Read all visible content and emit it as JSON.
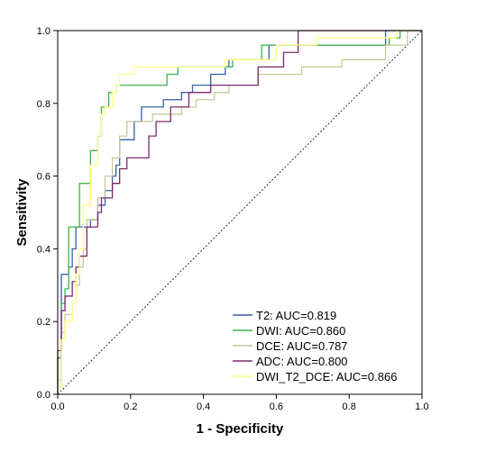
{
  "chart_data": {
    "type": "line",
    "title": "",
    "xlabel": "1 - Specificity",
    "ylabel": "Sensitivity",
    "xlim": [
      0,
      1
    ],
    "ylim": [
      0,
      1
    ],
    "xticks": [
      "0.0",
      "0.2",
      "0.4",
      "0.6",
      "0.8",
      "1.0"
    ],
    "yticks": [
      "0.0",
      "0.2",
      "0.4",
      "0.6",
      "0.8",
      "1.0"
    ],
    "grid": false,
    "legend_position": "bottom-right",
    "reference_line": {
      "style": "dashed",
      "color": "#000000",
      "points": [
        [
          0,
          0
        ],
        [
          1,
          1
        ]
      ]
    },
    "series": [
      {
        "name": "T2: AUC=0.819",
        "color": "#3a5fa8",
        "points": [
          [
            0,
            0
          ],
          [
            0,
            0.1
          ],
          [
            0.01,
            0.1
          ],
          [
            0.01,
            0.33
          ],
          [
            0.03,
            0.33
          ],
          [
            0.03,
            0.35
          ],
          [
            0.04,
            0.35
          ],
          [
            0.04,
            0.4
          ],
          [
            0.05,
            0.4
          ],
          [
            0.05,
            0.46
          ],
          [
            0.09,
            0.46
          ],
          [
            0.09,
            0.48
          ],
          [
            0.11,
            0.48
          ],
          [
            0.11,
            0.52
          ],
          [
            0.13,
            0.52
          ],
          [
            0.13,
            0.56
          ],
          [
            0.15,
            0.56
          ],
          [
            0.15,
            0.6
          ],
          [
            0.16,
            0.6
          ],
          [
            0.16,
            0.63
          ],
          [
            0.17,
            0.63
          ],
          [
            0.17,
            0.7
          ],
          [
            0.21,
            0.7
          ],
          [
            0.21,
            0.75
          ],
          [
            0.23,
            0.75
          ],
          [
            0.23,
            0.79
          ],
          [
            0.29,
            0.79
          ],
          [
            0.29,
            0.81
          ],
          [
            0.34,
            0.81
          ],
          [
            0.34,
            0.83
          ],
          [
            0.37,
            0.83
          ],
          [
            0.37,
            0.85
          ],
          [
            0.42,
            0.85
          ],
          [
            0.42,
            0.88
          ],
          [
            0.46,
            0.88
          ],
          [
            0.46,
            0.9
          ],
          [
            0.47,
            0.9
          ],
          [
            0.47,
            0.92
          ],
          [
            0.58,
            0.92
          ],
          [
            0.58,
            0.96
          ],
          [
            0.9,
            0.96
          ],
          [
            0.9,
            1.0
          ],
          [
            1,
            1
          ]
        ]
      },
      {
        "name": "DWI: AUC=0.860",
        "color": "#3cb44b",
        "points": [
          [
            0,
            0
          ],
          [
            0,
            0.02
          ],
          [
            0.01,
            0.02
          ],
          [
            0.01,
            0.25
          ],
          [
            0.02,
            0.25
          ],
          [
            0.02,
            0.29
          ],
          [
            0.03,
            0.29
          ],
          [
            0.03,
            0.46
          ],
          [
            0.06,
            0.46
          ],
          [
            0.06,
            0.58
          ],
          [
            0.09,
            0.58
          ],
          [
            0.09,
            0.67
          ],
          [
            0.11,
            0.67
          ],
          [
            0.11,
            0.71
          ],
          [
            0.12,
            0.71
          ],
          [
            0.12,
            0.79
          ],
          [
            0.14,
            0.79
          ],
          [
            0.14,
            0.83
          ],
          [
            0.16,
            0.83
          ],
          [
            0.16,
            0.85
          ],
          [
            0.3,
            0.85
          ],
          [
            0.3,
            0.88
          ],
          [
            0.33,
            0.88
          ],
          [
            0.33,
            0.9
          ],
          [
            0.48,
            0.9
          ],
          [
            0.48,
            0.92
          ],
          [
            0.56,
            0.92
          ],
          [
            0.56,
            0.96
          ],
          [
            0.91,
            0.96
          ],
          [
            0.91,
            0.98
          ],
          [
            0.94,
            0.98
          ],
          [
            0.94,
            1.0
          ],
          [
            1,
            1
          ]
        ]
      },
      {
        "name": "DCE: AUC=0.787",
        "color": "#c8c896",
        "points": [
          [
            0,
            0
          ],
          [
            0,
            0.04
          ],
          [
            0.01,
            0.04
          ],
          [
            0.01,
            0.17
          ],
          [
            0.02,
            0.17
          ],
          [
            0.02,
            0.22
          ],
          [
            0.04,
            0.22
          ],
          [
            0.04,
            0.25
          ],
          [
            0.05,
            0.25
          ],
          [
            0.05,
            0.3
          ],
          [
            0.06,
            0.3
          ],
          [
            0.06,
            0.35
          ],
          [
            0.07,
            0.35
          ],
          [
            0.07,
            0.4
          ],
          [
            0.08,
            0.4
          ],
          [
            0.08,
            0.48
          ],
          [
            0.11,
            0.48
          ],
          [
            0.11,
            0.54
          ],
          [
            0.13,
            0.54
          ],
          [
            0.13,
            0.6
          ],
          [
            0.15,
            0.6
          ],
          [
            0.15,
            0.65
          ],
          [
            0.17,
            0.65
          ],
          [
            0.17,
            0.71
          ],
          [
            0.19,
            0.71
          ],
          [
            0.19,
            0.75
          ],
          [
            0.26,
            0.75
          ],
          [
            0.26,
            0.77
          ],
          [
            0.34,
            0.77
          ],
          [
            0.34,
            0.79
          ],
          [
            0.38,
            0.79
          ],
          [
            0.38,
            0.81
          ],
          [
            0.43,
            0.81
          ],
          [
            0.43,
            0.83
          ],
          [
            0.47,
            0.83
          ],
          [
            0.47,
            0.85
          ],
          [
            0.55,
            0.85
          ],
          [
            0.55,
            0.88
          ],
          [
            0.67,
            0.88
          ],
          [
            0.67,
            0.9
          ],
          [
            0.78,
            0.9
          ],
          [
            0.78,
            0.92
          ],
          [
            0.9,
            0.92
          ],
          [
            0.9,
            0.96
          ],
          [
            0.96,
            0.96
          ],
          [
            0.96,
            1.0
          ],
          [
            1,
            1
          ]
        ]
      },
      {
        "name": "ADC: AUC=0.800",
        "color": "#7b2a6e",
        "points": [
          [
            0,
            0
          ],
          [
            0,
            0.12
          ],
          [
            0.01,
            0.12
          ],
          [
            0.01,
            0.23
          ],
          [
            0.02,
            0.23
          ],
          [
            0.02,
            0.27
          ],
          [
            0.04,
            0.27
          ],
          [
            0.04,
            0.31
          ],
          [
            0.05,
            0.31
          ],
          [
            0.05,
            0.35
          ],
          [
            0.06,
            0.35
          ],
          [
            0.06,
            0.38
          ],
          [
            0.08,
            0.38
          ],
          [
            0.08,
            0.46
          ],
          [
            0.11,
            0.46
          ],
          [
            0.11,
            0.5
          ],
          [
            0.12,
            0.5
          ],
          [
            0.12,
            0.54
          ],
          [
            0.15,
            0.54
          ],
          [
            0.15,
            0.58
          ],
          [
            0.17,
            0.58
          ],
          [
            0.17,
            0.62
          ],
          [
            0.19,
            0.62
          ],
          [
            0.19,
            0.65
          ],
          [
            0.25,
            0.65
          ],
          [
            0.25,
            0.71
          ],
          [
            0.27,
            0.71
          ],
          [
            0.27,
            0.75
          ],
          [
            0.31,
            0.75
          ],
          [
            0.31,
            0.79
          ],
          [
            0.36,
            0.79
          ],
          [
            0.36,
            0.83
          ],
          [
            0.42,
            0.83
          ],
          [
            0.42,
            0.85
          ],
          [
            0.55,
            0.85
          ],
          [
            0.55,
            0.9
          ],
          [
            0.62,
            0.9
          ],
          [
            0.62,
            0.94
          ],
          [
            0.66,
            0.94
          ],
          [
            0.66,
            1.0
          ],
          [
            1,
            1
          ]
        ]
      },
      {
        "name": "DWI_T2_DCE: AUC=0.866",
        "color": "#ffff80",
        "points": [
          [
            0,
            0
          ],
          [
            0,
            0.02
          ],
          [
            0.01,
            0.02
          ],
          [
            0.01,
            0.15
          ],
          [
            0.02,
            0.15
          ],
          [
            0.02,
            0.2
          ],
          [
            0.04,
            0.2
          ],
          [
            0.04,
            0.25
          ],
          [
            0.05,
            0.25
          ],
          [
            0.05,
            0.33
          ],
          [
            0.06,
            0.33
          ],
          [
            0.06,
            0.4
          ],
          [
            0.07,
            0.4
          ],
          [
            0.07,
            0.52
          ],
          [
            0.09,
            0.52
          ],
          [
            0.09,
            0.63
          ],
          [
            0.11,
            0.63
          ],
          [
            0.11,
            0.71
          ],
          [
            0.12,
            0.71
          ],
          [
            0.12,
            0.77
          ],
          [
            0.13,
            0.77
          ],
          [
            0.13,
            0.79
          ],
          [
            0.15,
            0.79
          ],
          [
            0.15,
            0.83
          ],
          [
            0.16,
            0.83
          ],
          [
            0.16,
            0.85
          ],
          [
            0.17,
            0.85
          ],
          [
            0.17,
            0.88
          ],
          [
            0.21,
            0.88
          ],
          [
            0.21,
            0.9
          ],
          [
            0.46,
            0.9
          ],
          [
            0.46,
            0.92
          ],
          [
            0.6,
            0.92
          ],
          [
            0.6,
            0.96
          ],
          [
            0.71,
            0.96
          ],
          [
            0.71,
            0.98
          ],
          [
            0.93,
            0.98
          ],
          [
            0.93,
            1.0
          ],
          [
            1,
            1
          ]
        ]
      }
    ]
  }
}
